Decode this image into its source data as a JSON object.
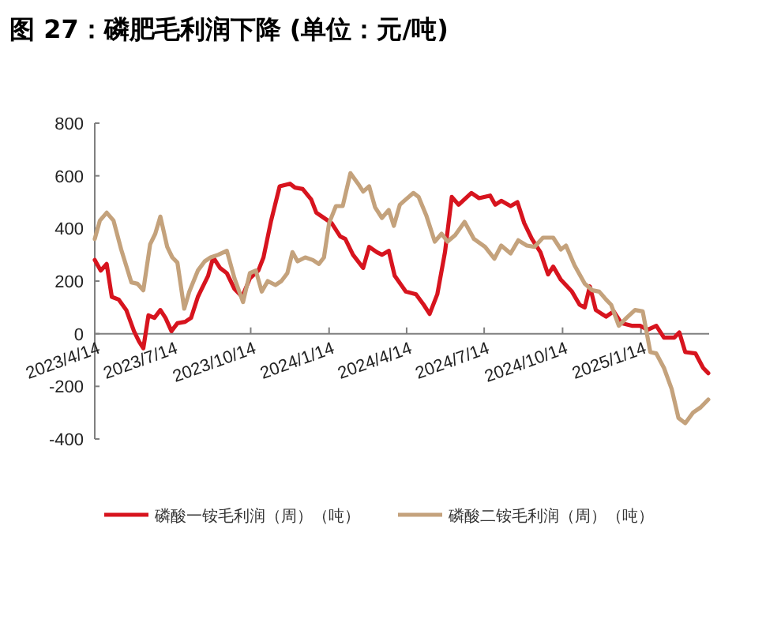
{
  "chart_data": {
    "type": "line",
    "title": "图 27：磷肥毛利润下降 (单位：元/吨)",
    "xlim": [
      "2023-04-14",
      "2025-04-04"
    ],
    "xticks": [
      {
        "value": "2023-04-14",
        "label": "2023/4/14"
      },
      {
        "value": "2023-07-14",
        "label": "2023/7/14"
      },
      {
        "value": "2023-10-14",
        "label": "2023/10/14"
      },
      {
        "value": "2024-01-14",
        "label": "2024/1/14"
      },
      {
        "value": "2024-04-14",
        "label": "2024/4/14"
      },
      {
        "value": "2024-07-14",
        "label": "2024/7/14"
      },
      {
        "value": "2024-10-14",
        "label": "2024/10/14"
      },
      {
        "value": "2025-01-14",
        "label": "2025/1/14"
      }
    ],
    "ylim": [
      -400,
      800
    ],
    "yticks": [
      -400,
      -200,
      0,
      200,
      400,
      600,
      800
    ],
    "grid": false,
    "legend": "bottom",
    "series": [
      {
        "name": "磷酸一铵毛利润（周）（吨）",
        "color": "#d7141e",
        "x": [
          "2023-04-14",
          "2023-04-21",
          "2023-04-28",
          "2023-05-04",
          "2023-05-12",
          "2023-05-21",
          "2023-05-30",
          "2023-06-05",
          "2023-06-10",
          "2023-06-16",
          "2023-06-23",
          "2023-06-30",
          "2023-07-06",
          "2023-07-13",
          "2023-07-20",
          "2023-07-29",
          "2023-08-05",
          "2023-08-13",
          "2023-08-25",
          "2023-08-31",
          "2023-09-08",
          "2023-09-16",
          "2023-09-25",
          "2023-10-04",
          "2023-10-13",
          "2023-10-23",
          "2023-10-29",
          "2023-11-07",
          "2023-11-17",
          "2023-11-29",
          "2023-12-05",
          "2023-12-14",
          "2023-12-24",
          "2023-12-30",
          "2024-01-08",
          "2024-01-17",
          "2024-01-27",
          "2024-02-02",
          "2024-02-11",
          "2024-02-23",
          "2024-03-01",
          "2024-03-10",
          "2024-03-16",
          "2024-03-24",
          "2024-03-31",
          "2024-04-13",
          "2024-04-25",
          "2024-05-04",
          "2024-05-11",
          "2024-05-20",
          "2024-05-29",
          "2024-06-06",
          "2024-06-14",
          "2024-06-29",
          "2024-07-08",
          "2024-07-21",
          "2024-07-27",
          "2024-08-03",
          "2024-08-14",
          "2024-08-22",
          "2024-08-30",
          "2024-09-08",
          "2024-09-18",
          "2024-09-27",
          "2024-10-03",
          "2024-10-12",
          "2024-10-25",
          "2024-11-03",
          "2024-11-09",
          "2024-11-15",
          "2024-11-22",
          "2024-12-04",
          "2024-12-13",
          "2024-12-22",
          "2025-01-04",
          "2025-01-13",
          "2025-01-22",
          "2025-02-01",
          "2025-02-10",
          "2025-02-22",
          "2025-02-28",
          "2025-03-07",
          "2025-03-19",
          "2025-03-28",
          "2025-04-03"
        ],
        "values": [
          280,
          240,
          265,
          140,
          130,
          90,
          10,
          -30,
          -55,
          70,
          60,
          90,
          60,
          10,
          40,
          45,
          60,
          140,
          220,
          290,
          250,
          230,
          170,
          140,
          210,
          240,
          290,
          430,
          560,
          570,
          555,
          550,
          510,
          460,
          440,
          420,
          370,
          360,
          300,
          250,
          330,
          310,
          300,
          315,
          220,
          160,
          150,
          110,
          75,
          150,
          310,
          520,
          490,
          535,
          515,
          525,
          490,
          505,
          485,
          500,
          420,
          360,
          310,
          225,
          255,
          205,
          160,
          110,
          100,
          180,
          90,
          65,
          85,
          40,
          30,
          30,
          15,
          30,
          -15,
          -15,
          5,
          -70,
          -75,
          -130,
          -150
        ]
      },
      {
        "name": "磷酸二铵毛利润（周）（吨）",
        "color": "#c4a27c",
        "x": [
          "2023-04-14",
          "2023-04-20",
          "2023-04-28",
          "2023-05-06",
          "2023-05-15",
          "2023-05-27",
          "2023-06-03",
          "2023-06-10",
          "2023-06-18",
          "2023-06-24",
          "2023-06-30",
          "2023-07-08",
          "2023-07-14",
          "2023-07-20",
          "2023-07-28",
          "2023-08-03",
          "2023-08-13",
          "2023-08-21",
          "2023-08-28",
          "2023-09-06",
          "2023-09-16",
          "2023-09-25",
          "2023-10-05",
          "2023-10-13",
          "2023-10-20",
          "2023-10-27",
          "2023-11-03",
          "2023-11-12",
          "2023-11-19",
          "2023-11-26",
          "2023-12-02",
          "2023-12-08",
          "2023-12-17",
          "2023-12-26",
          "2024-01-02",
          "2024-01-08",
          "2024-01-14",
          "2024-01-22",
          "2024-01-30",
          "2024-02-08",
          "2024-02-17",
          "2024-02-23",
          "2024-03-01",
          "2024-03-08",
          "2024-03-16",
          "2024-03-24",
          "2024-03-30",
          "2024-04-06",
          "2024-04-13",
          "2024-04-22",
          "2024-04-28",
          "2024-05-07",
          "2024-05-17",
          "2024-05-25",
          "2024-06-01",
          "2024-06-10",
          "2024-06-21",
          "2024-07-02",
          "2024-07-15",
          "2024-07-26",
          "2024-08-03",
          "2024-08-14",
          "2024-08-23",
          "2024-09-02",
          "2024-09-11",
          "2024-09-21",
          "2024-10-03",
          "2024-10-12",
          "2024-10-18",
          "2024-10-28",
          "2024-11-09",
          "2024-11-18",
          "2024-11-26",
          "2024-12-04",
          "2024-12-10",
          "2024-12-19",
          "2024-12-28",
          "2025-01-07",
          "2025-01-16",
          "2025-01-25",
          "2025-02-01",
          "2025-02-10",
          "2025-02-19",
          "2025-02-27",
          "2025-03-07",
          "2025-03-16",
          "2025-03-25",
          "2025-04-03"
        ],
        "values": [
          360,
          430,
          460,
          430,
          320,
          195,
          190,
          165,
          340,
          380,
          445,
          330,
          290,
          270,
          95,
          160,
          240,
          275,
          290,
          300,
          315,
          210,
          120,
          230,
          240,
          160,
          200,
          185,
          200,
          230,
          310,
          275,
          290,
          280,
          265,
          290,
          420,
          485,
          485,
          610,
          570,
          540,
          560,
          480,
          440,
          470,
          410,
          490,
          510,
          535,
          520,
          450,
          350,
          380,
          350,
          375,
          425,
          360,
          330,
          285,
          335,
          305,
          355,
          335,
          330,
          365,
          365,
          320,
          335,
          260,
          190,
          165,
          160,
          130,
          110,
          30,
          60,
          90,
          85,
          -70,
          -75,
          -130,
          -210,
          -320,
          -340,
          -300,
          -280,
          -250
        ]
      }
    ]
  }
}
